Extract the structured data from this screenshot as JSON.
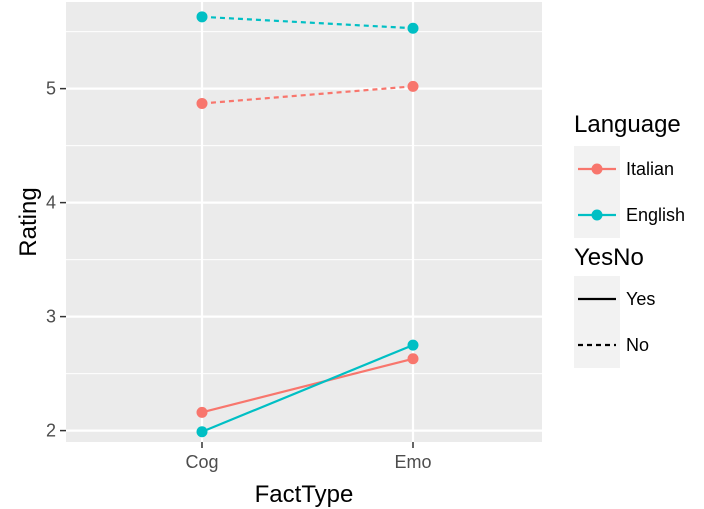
{
  "chart_data": {
    "type": "line",
    "xlabel": "FactType",
    "ylabel": "Rating",
    "categories": [
      "Cog",
      "Emo"
    ],
    "ylim": [
      1.9,
      5.76
    ],
    "yticks": [
      2,
      3,
      4,
      5
    ],
    "grid": true,
    "legend_placement": "right",
    "legends": [
      {
        "title": "Language",
        "entries": [
          {
            "label": "Italian",
            "color": "#F8766D"
          },
          {
            "label": "English",
            "color": "#00BFC4"
          }
        ]
      },
      {
        "title": "YesNo",
        "entries": [
          {
            "label": "Yes",
            "linetype": "solid"
          },
          {
            "label": "No",
            "linetype": "dashed"
          }
        ]
      }
    ],
    "series": [
      {
        "language": "Italian",
        "yesno": "Yes",
        "color": "#F8766D",
        "linetype": "solid",
        "values": [
          2.16,
          2.63
        ]
      },
      {
        "language": "English",
        "yesno": "Yes",
        "color": "#00BFC4",
        "linetype": "solid",
        "values": [
          1.99,
          2.75
        ]
      },
      {
        "language": "Italian",
        "yesno": "No",
        "color": "#F8766D",
        "linetype": "dashed",
        "values": [
          4.87,
          5.02
        ]
      },
      {
        "language": "English",
        "yesno": "No",
        "color": "#00BFC4",
        "linetype": "dashed",
        "values": [
          5.63,
          5.53
        ]
      }
    ]
  }
}
